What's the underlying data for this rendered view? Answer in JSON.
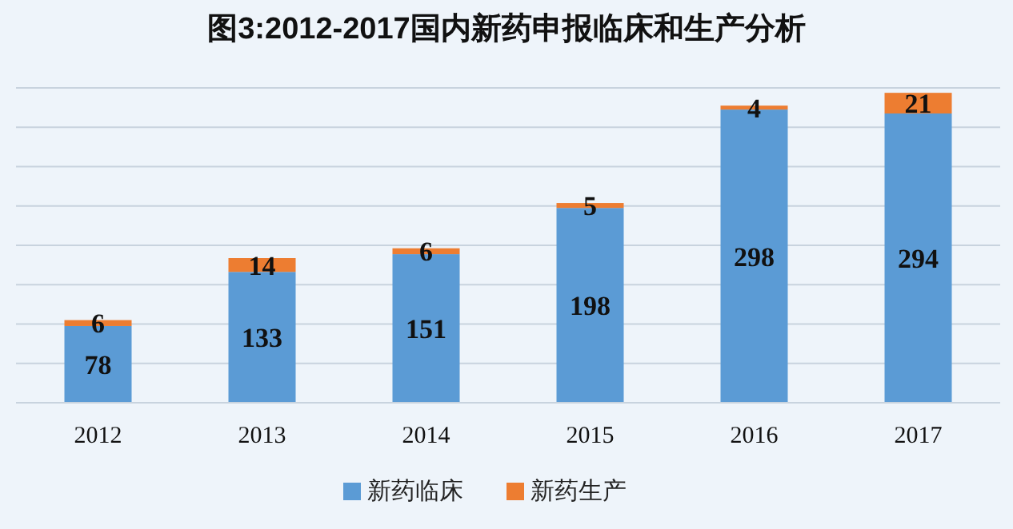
{
  "chart_data": {
    "type": "bar",
    "title": "图3:2012-2017国内新药申报临床和生产分析",
    "categories": [
      "2012",
      "2013",
      "2014",
      "2015",
      "2016",
      "2017"
    ],
    "stacked": true,
    "data_labels": true,
    "grid": "y",
    "legend": "bottom",
    "tick_labels": "x",
    "ylim": [
      0,
      320
    ],
    "yticks": [
      {
        "value": 0,
        "label": null
      },
      {
        "value": 40,
        "label": null
      },
      {
        "value": 80,
        "label": null
      },
      {
        "value": 120,
        "label": null
      },
      {
        "value": 160,
        "label": null
      },
      {
        "value": 200,
        "label": null
      },
      {
        "value": 240,
        "label": null
      },
      {
        "value": 280,
        "label": null
      },
      {
        "value": 320,
        "label": null
      }
    ],
    "series": [
      {
        "name": "新药临床",
        "color": "#5b9bd5",
        "values": [
          78,
          133,
          151,
          198,
          298,
          294
        ]
      },
      {
        "name": "新药生产",
        "color": "#ed7d31",
        "values": [
          6,
          14,
          6,
          5,
          4,
          21
        ]
      }
    ]
  }
}
